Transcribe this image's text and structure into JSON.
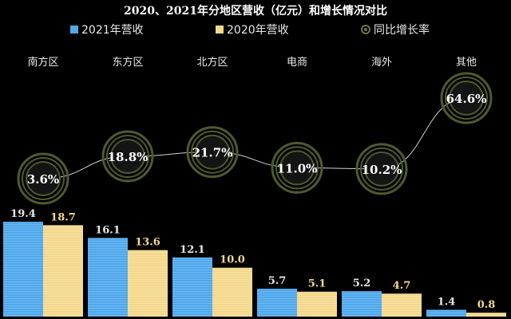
{
  "chart_data": {
    "type": "bar",
    "title": "2020、2021年分地区营收（亿元）和增长情况对比",
    "categories": [
      "南方区",
      "东方区",
      "北方区",
      "电商",
      "海外",
      "其他"
    ],
    "series": [
      {
        "name": "2021年营收",
        "values": [
          19.4,
          16.1,
          12.1,
          5.7,
          5.2,
          1.4
        ],
        "color": "#4fa8ec"
      },
      {
        "name": "2020年营收",
        "values": [
          18.7,
          13.6,
          10.0,
          5.1,
          4.7,
          0.8
        ],
        "color": "#f4d88c"
      }
    ],
    "line_series": {
      "name": "同比增长率",
      "values": [
        3.6,
        18.8,
        21.7,
        11.0,
        10.2,
        64.6
      ],
      "labels": [
        "3.6%",
        "18.8%",
        "21.7%",
        "11.0%",
        "10.2%",
        "64.6%"
      ],
      "color": "#d0d0d0",
      "marker_color": "#4f5a2d"
    },
    "bar_label_colors": [
      "#e6e6e6",
      "#f4d88c"
    ],
    "background": "#000000"
  }
}
